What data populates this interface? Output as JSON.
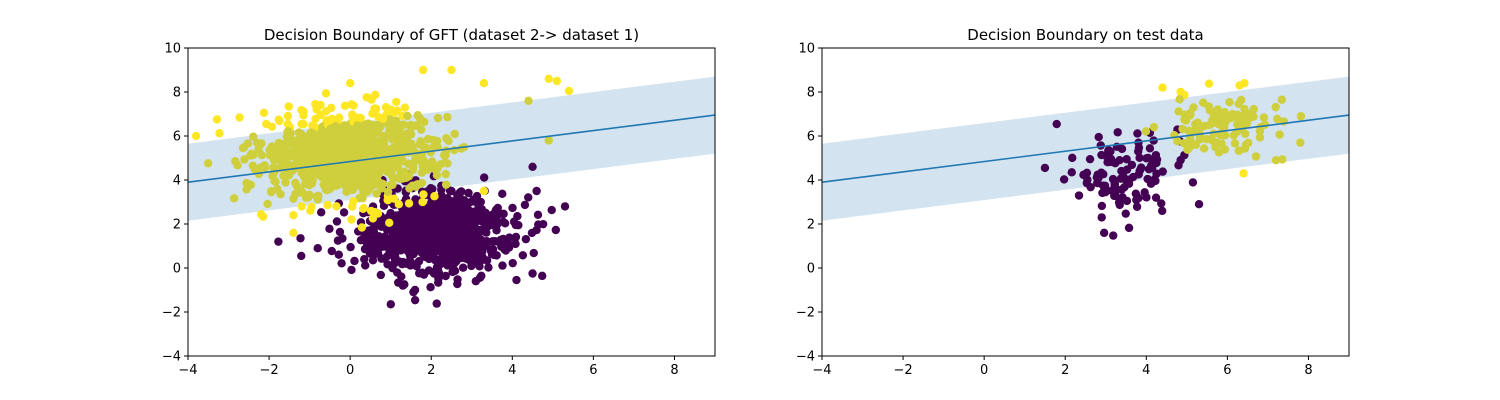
{
  "figure": {
    "background": "#ffffff"
  },
  "colors": {
    "class0": "#440154",
    "class1": "#fde725",
    "class1_mixed": "#cfcf3d",
    "line": "#1f77b4",
    "band": "#a8c8e0"
  },
  "chart_data": [
    {
      "type": "scatter",
      "title": "Decision Boundary of GFT (dataset 2-> dataset 1)",
      "xlabel": "",
      "ylabel": "",
      "xlim": [
        -4,
        9
      ],
      "ylim": [
        -4,
        10
      ],
      "xticks": [
        -4,
        -2,
        0,
        2,
        4,
        6,
        8
      ],
      "yticks": [
        -4,
        -2,
        0,
        2,
        4,
        6,
        8,
        10
      ],
      "xtick_labels": [
        "−4",
        "−2",
        "0",
        "2",
        "4",
        "6",
        "8"
      ],
      "ytick_labels": [
        "−4",
        "−2",
        "0",
        "2",
        "4",
        "6",
        "8",
        "10"
      ],
      "boundary_line": {
        "x": [
          -4,
          9
        ],
        "y": [
          3.9,
          6.95
        ]
      },
      "margin_band": {
        "x": [
          -4,
          9
        ],
        "lower": [
          2.15,
          5.2
        ],
        "upper": [
          5.65,
          8.7
        ]
      },
      "clusters": [
        {
          "name": "class 1 (yellow)",
          "center": [
            0.0,
            5.2
          ],
          "spread": [
            1.1,
            1.0
          ],
          "count": 900,
          "label": 1
        },
        {
          "name": "class 0 (purple)",
          "center": [
            2.1,
            1.6
          ],
          "spread": [
            0.95,
            0.95
          ],
          "count": 900,
          "label": 0
        }
      ],
      "outliers": [
        {
          "x": -3.8,
          "y": 6.0,
          "label": 1
        },
        {
          "x": 0.0,
          "y": 8.4,
          "label": 1
        },
        {
          "x": 1.8,
          "y": 9.0,
          "label": 1
        },
        {
          "x": 2.5,
          "y": 9.0,
          "label": 1
        },
        {
          "x": 4.9,
          "y": 8.6,
          "label": 1
        },
        {
          "x": 5.4,
          "y": 8.05,
          "label": 1
        },
        {
          "x": 5.1,
          "y": 8.5,
          "label": 1
        },
        {
          "x": 4.9,
          "y": 5.8,
          "label": 1
        },
        {
          "x": 3.3,
          "y": 8.4,
          "label": 1
        },
        {
          "x": 4.4,
          "y": 7.6,
          "label": 1
        },
        {
          "x": -1.4,
          "y": 1.6,
          "label": 1
        },
        {
          "x": -1.4,
          "y": 2.4,
          "label": 1
        },
        {
          "x": 3.3,
          "y": 3.5,
          "label": 1
        },
        {
          "x": 1.2,
          "y": 2.9,
          "label": 1
        },
        {
          "x": 4.5,
          "y": -0.25,
          "label": 0
        },
        {
          "x": 1.6,
          "y": -1.0,
          "label": 0
        },
        {
          "x": 1.3,
          "y": -0.8,
          "label": 0
        },
        {
          "x": 5.3,
          "y": 2.8,
          "label": 0
        },
        {
          "x": 4.5,
          "y": 4.6,
          "label": 0
        },
        {
          "x": 4.6,
          "y": 3.5,
          "label": 0
        },
        {
          "x": -0.8,
          "y": 0.9,
          "label": 0
        },
        {
          "x": 3.1,
          "y": -0.6,
          "label": 0
        }
      ]
    },
    {
      "type": "scatter",
      "title": "Decision Boundary on test data",
      "xlabel": "",
      "ylabel": "",
      "xlim": [
        -4,
        9
      ],
      "ylim": [
        -4,
        10
      ],
      "xticks": [
        -4,
        -2,
        0,
        2,
        4,
        6,
        8
      ],
      "yticks": [
        -4,
        -2,
        0,
        2,
        4,
        6,
        8,
        10
      ],
      "xtick_labels": [
        "−4",
        "−2",
        "0",
        "2",
        "4",
        "6",
        "8"
      ],
      "ytick_labels": [
        "−4",
        "−2",
        "0",
        "2",
        "4",
        "6",
        "8",
        "10"
      ],
      "boundary_line": {
        "x": [
          -4,
          9
        ],
        "y": [
          3.9,
          6.95
        ]
      },
      "margin_band": {
        "x": [
          -4,
          9
        ],
        "lower": [
          2.15,
          5.2
        ],
        "upper": [
          5.65,
          8.7
        ]
      },
      "clusters": [
        {
          "name": "class 1 (yellow)",
          "center": [
            5.9,
            6.4
          ],
          "spread": [
            0.8,
            0.75
          ],
          "count": 110,
          "label": 1
        },
        {
          "name": "class 0 (purple)",
          "center": [
            3.4,
            4.2
          ],
          "spread": [
            0.75,
            0.85
          ],
          "count": 110,
          "label": 0
        }
      ],
      "outliers": [
        {
          "x": 6.3,
          "y": 8.3,
          "label": 1
        },
        {
          "x": 4.4,
          "y": 8.2,
          "label": 1
        },
        {
          "x": 6.4,
          "y": 4.3,
          "label": 1
        },
        {
          "x": 7.8,
          "y": 5.7,
          "label": 1
        },
        {
          "x": 7.2,
          "y": 4.9,
          "label": 1
        },
        {
          "x": 1.5,
          "y": 4.55,
          "label": 0
        },
        {
          "x": 5.3,
          "y": 2.9,
          "label": 0
        },
        {
          "x": 2.9,
          "y": 2.3,
          "label": 0
        }
      ]
    }
  ]
}
